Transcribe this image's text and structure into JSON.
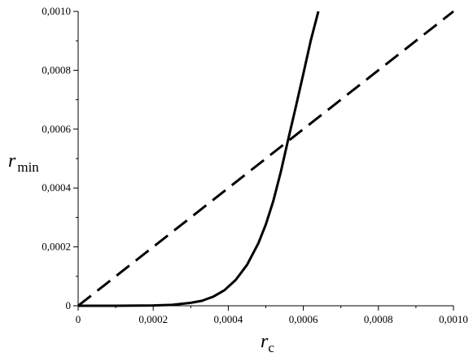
{
  "chart_data": {
    "type": "line",
    "xlabel": {
      "var": "r",
      "sub": "c"
    },
    "ylabel": {
      "var": "r",
      "sub": "min"
    },
    "xlim": [
      0,
      0.001
    ],
    "ylim": [
      0,
      0.001
    ],
    "x_ticks": [
      0,
      0.0002,
      0.0004,
      0.0006,
      0.0008,
      0.001
    ],
    "y_ticks": [
      0,
      0.0002,
      0.0004,
      0.0006,
      0.0008,
      0.001
    ],
    "x_tick_labels": [
      "0",
      "0,0002",
      "0,0004",
      "0,0006",
      "0,0008",
      "0,0010"
    ],
    "y_tick_labels": [
      "0",
      "0,0002",
      "0,0004",
      "0,0006",
      "0,0008",
      "0,0010"
    ],
    "grid": false,
    "legend": "none",
    "series": [
      {
        "style": "solid",
        "color": "#000000",
        "x": [
          0,
          0.0001,
          0.0002,
          0.00025,
          0.0003,
          0.00033,
          0.00036,
          0.00039,
          0.00042,
          0.00045,
          0.00048,
          0.0005,
          0.00052,
          0.00054,
          0.00056,
          0.00058,
          0.0006,
          0.00062,
          0.00064
        ],
        "y": [
          0,
          0,
          1e-06,
          3e-06,
          1e-05,
          1.7e-05,
          3.1e-05,
          5.3e-05,
          8.8e-05,
          0.000139,
          0.000212,
          0.000276,
          0.000356,
          0.000455,
          0.000567,
          0.000676,
          0.000788,
          0.000902,
          0.001
        ]
      },
      {
        "style": "dashed",
        "color": "#000000",
        "x": [
          0,
          0.001
        ],
        "y": [
          0,
          0.001
        ]
      }
    ]
  }
}
